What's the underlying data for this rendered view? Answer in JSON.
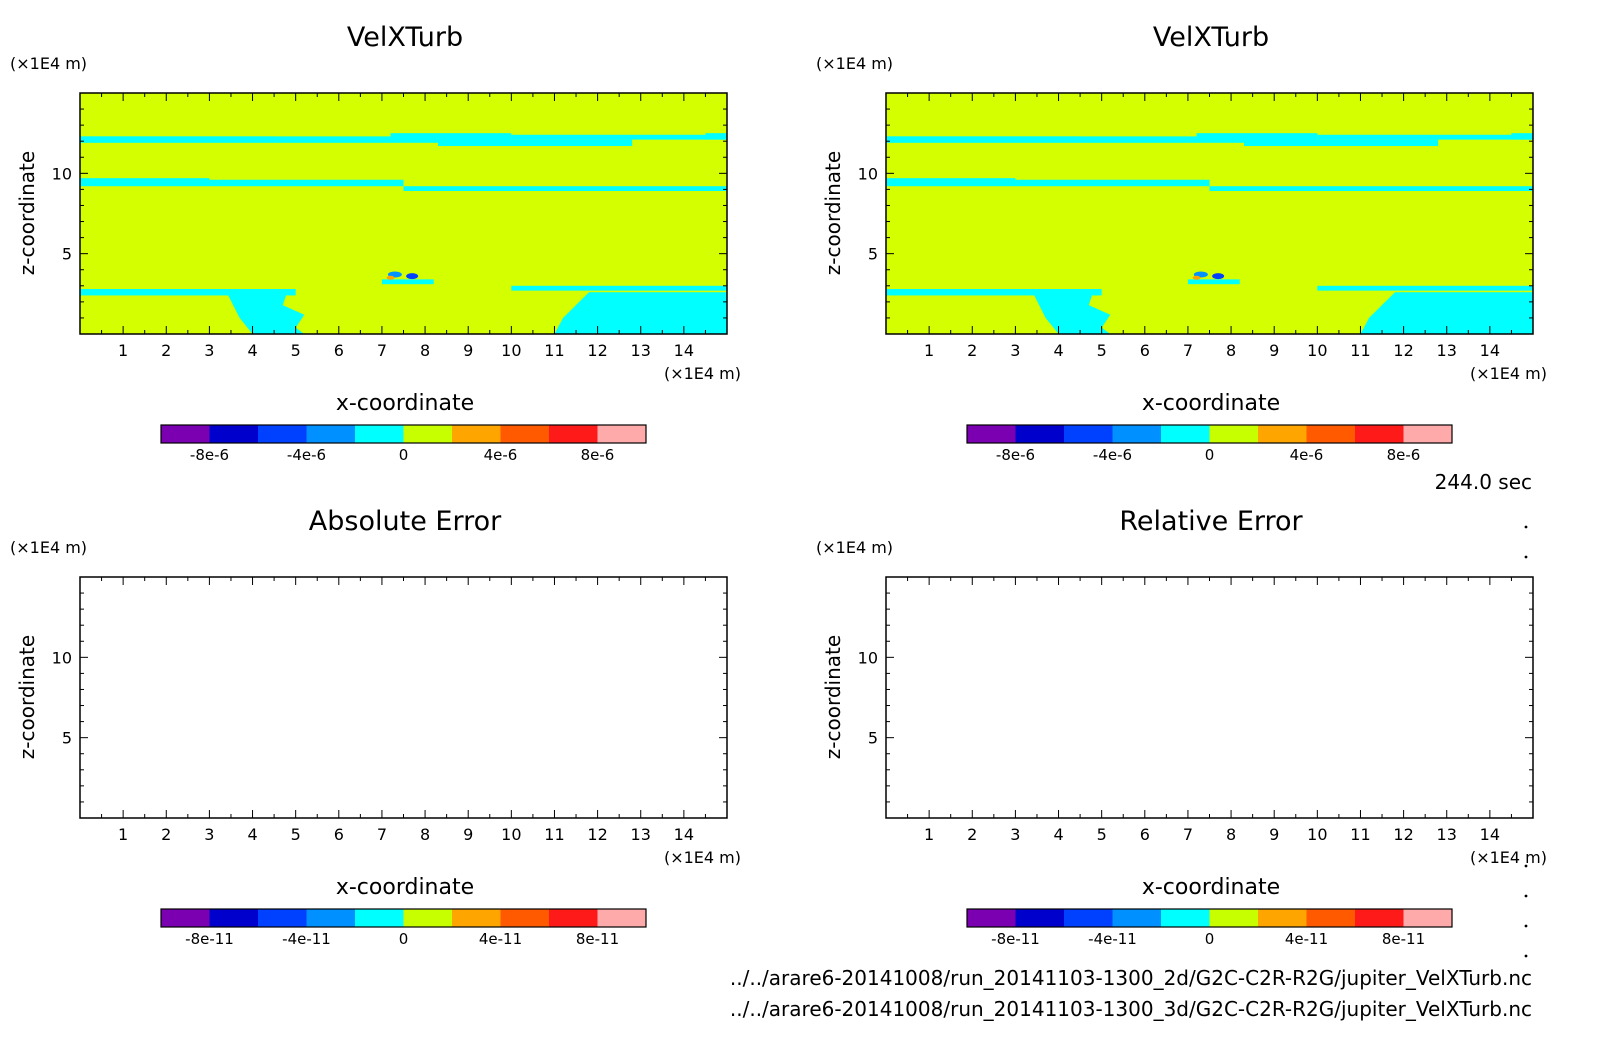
{
  "panel_titles": [
    "VelXTurb",
    "VelXTurb",
    "Absolute Error",
    "Relative Error"
  ],
  "time_label": "244.0 sec",
  "footer_paths": [
    "../../arare6-20141008/run_20141103-1300_2d/G2C-C2R-R2G/jupiter_VelXTurb.nc",
    "../../arare6-20141008/run_20141103-1300_3d/G2C-C2R-R2G/jupiter_VelXTurb.nc"
  ],
  "colors": {
    "background_field": "#d4ff00",
    "band_color": "#00ffff",
    "colorbar_small": [
      "#7b00b2",
      "#0000cd",
      "#0040ff",
      "#0090ff",
      "#00ffff",
      "#c8ff00",
      "#ffa500",
      "#ff5a00",
      "#ff1a1a",
      "#ffaaaa"
    ]
  },
  "chart_data": [
    {
      "type": "heatmap",
      "title": "VelXTurb",
      "xlabel": "x-coordinate",
      "ylabel": "z-coordinate",
      "x_unit": "(×1E4 m)",
      "y_unit": "(×1E4 m)",
      "xlim": [
        0,
        15
      ],
      "ylim": [
        0,
        15
      ],
      "x_ticks": [
        "1",
        "2",
        "3",
        "4",
        "5",
        "6",
        "7",
        "8",
        "9",
        "10",
        "11",
        "12",
        "13",
        "14"
      ],
      "y_ticks": [
        "5",
        "10"
      ],
      "colorbar_ticks": [
        "-8e-6",
        "-4e-6",
        "0",
        "4e-6",
        "8e-6"
      ],
      "colorbar_range": [
        -1e-05,
        1e-05
      ],
      "field": "filled"
    },
    {
      "type": "heatmap",
      "title": "VelXTurb",
      "xlabel": "x-coordinate",
      "ylabel": "z-coordinate",
      "x_unit": "(×1E4 m)",
      "y_unit": "(×1E4 m)",
      "xlim": [
        0,
        15
      ],
      "ylim": [
        0,
        15
      ],
      "x_ticks": [
        "1",
        "2",
        "3",
        "4",
        "5",
        "6",
        "7",
        "8",
        "9",
        "10",
        "11",
        "12",
        "13",
        "14"
      ],
      "y_ticks": [
        "5",
        "10"
      ],
      "colorbar_ticks": [
        "-8e-6",
        "-4e-6",
        "0",
        "4e-6",
        "8e-6"
      ],
      "colorbar_range": [
        -1e-05,
        1e-05
      ],
      "field": "filled"
    },
    {
      "type": "heatmap",
      "title": "Absolute Error",
      "xlabel": "x-coordinate",
      "ylabel": "z-coordinate",
      "x_unit": "(×1E4 m)",
      "y_unit": "(×1E4 m)",
      "xlim": [
        0,
        15
      ],
      "ylim": [
        0,
        15
      ],
      "x_ticks": [
        "1",
        "2",
        "3",
        "4",
        "5",
        "6",
        "7",
        "8",
        "9",
        "10",
        "11",
        "12",
        "13",
        "14"
      ],
      "y_ticks": [
        "5",
        "10"
      ],
      "colorbar_ticks": [
        "-8e-11",
        "-4e-11",
        "0",
        "4e-11",
        "8e-11"
      ],
      "colorbar_range": [
        -1e-10,
        1e-10
      ],
      "field": "empty"
    },
    {
      "type": "heatmap",
      "title": "Relative Error",
      "xlabel": "x-coordinate",
      "ylabel": "z-coordinate",
      "x_unit": "(×1E4 m)",
      "y_unit": "(×1E4 m)",
      "xlim": [
        0,
        15
      ],
      "ylim": [
        0,
        15
      ],
      "x_ticks": [
        "1",
        "2",
        "3",
        "4",
        "5",
        "6",
        "7",
        "8",
        "9",
        "10",
        "11",
        "12",
        "13",
        "14"
      ],
      "y_ticks": [
        "5",
        "10"
      ],
      "colorbar_ticks": [
        "-8e-11",
        "-4e-11",
        "0",
        "4e-11",
        "8e-11"
      ],
      "colorbar_range": [
        -1e-10,
        1e-10
      ],
      "field": "empty"
    }
  ]
}
